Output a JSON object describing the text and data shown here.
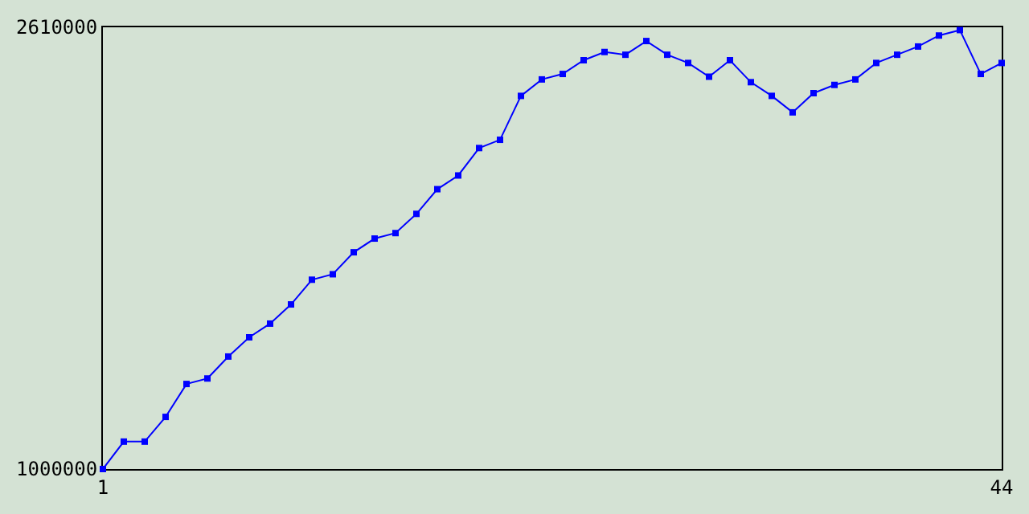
{
  "chart_data": {
    "type": "line",
    "x": [
      1,
      2,
      3,
      4,
      5,
      6,
      7,
      8,
      9,
      10,
      11,
      12,
      13,
      14,
      15,
      16,
      17,
      18,
      19,
      20,
      21,
      22,
      23,
      24,
      25,
      26,
      27,
      28,
      29,
      30,
      31,
      32,
      33,
      34,
      35,
      36,
      37,
      38,
      39,
      40,
      41,
      42,
      43,
      44
    ],
    "series": [
      {
        "color": "#0000ff",
        "values": [
          1000000,
          1100000,
          1100000,
          1190000,
          1310000,
          1330000,
          1410000,
          1480000,
          1530000,
          1600000,
          1690000,
          1710000,
          1790000,
          1840000,
          1860000,
          1930000,
          2020000,
          2070000,
          2170000,
          2200000,
          2360000,
          2420000,
          2440000,
          2490000,
          2520000,
          2510000,
          2560000,
          2510000,
          2480000,
          2430000,
          2490000,
          2410000,
          2360000,
          2300000,
          2370000,
          2400000,
          2420000,
          2480000,
          2510000,
          2540000,
          2580000,
          2600000,
          2440000,
          2480000
        ]
      }
    ],
    "xlim": [
      1,
      44
    ],
    "xticks": [
      1,
      44
    ],
    "ylim": [
      1000000,
      2610000
    ],
    "yticks": [
      1000000,
      2610000
    ],
    "marker": "square",
    "line_style": "solid"
  }
}
